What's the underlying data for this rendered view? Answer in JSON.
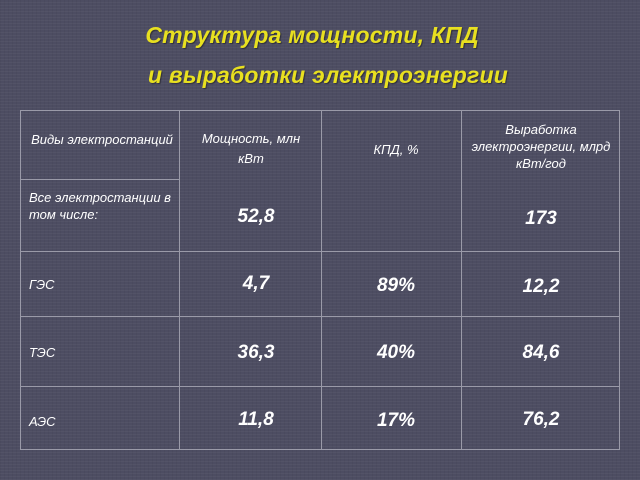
{
  "title": {
    "line1": "Структура мощности, КПД",
    "line2": "и выработки электроэнергии"
  },
  "table": {
    "headers": {
      "types": "Виды электростанций",
      "power": "Мощность, млн кВт",
      "efficiency": "КПД, %",
      "output": "Выработка электроэнергии, млрд кВт/год"
    },
    "rows": [
      {
        "name": "Все электростанции в том числе:",
        "power": "52,8",
        "efficiency": "",
        "output": "173"
      },
      {
        "name": "ГЭС",
        "power": "4,7",
        "efficiency": "89%",
        "output": "12,2"
      },
      {
        "name": "ТЭС",
        "power": "36,3",
        "efficiency": "40%",
        "output": "84,6"
      },
      {
        "name": "АЭС",
        "power": "11,8",
        "efficiency": "17%",
        "output": "76,2"
      }
    ]
  },
  "colors": {
    "background": "#4d4d62",
    "title": "#e8e020",
    "text": "#ffffff",
    "grid": "#9a9aa8"
  }
}
